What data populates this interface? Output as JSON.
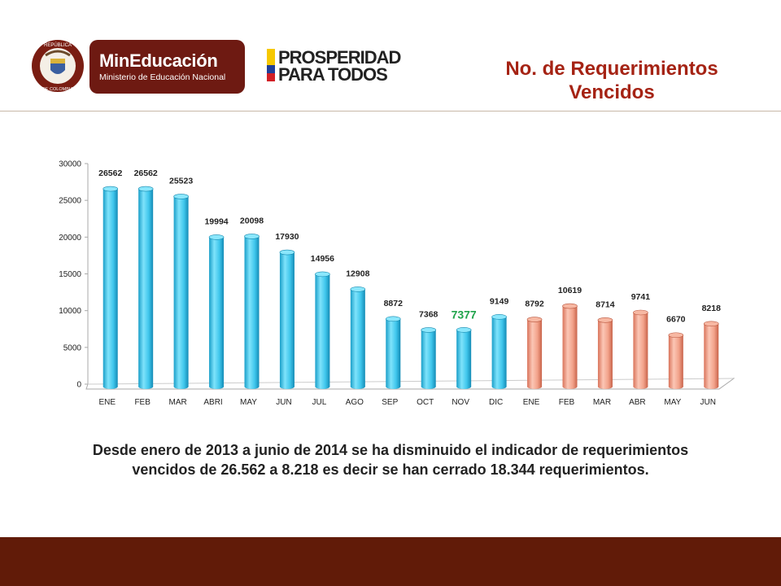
{
  "header": {
    "seal_top": "REPÚBLICA",
    "seal_bottom": "DE COLOMBIA",
    "ministry_name": "MinEducación",
    "ministry_sub": "Ministerio de Educación Nacional",
    "slogan_line1": "PROSPERIDAD",
    "slogan_line2": "PARA TODOS"
  },
  "title": "No. de Requerimientos Vencidos",
  "caption": "Desde enero de 2013 a junio de 2014 se ha disminuido el indicador de requerimientos vencidos de 26.562 a 8.218 es decir se han cerrado 18.344 requerimientos.",
  "colors": {
    "accent_title": "#a52314",
    "brand_dark": "#611b08",
    "series_2013": "#3fc6ec",
    "series_2014": "#f2a28a",
    "highlight_label": "#1fa34a"
  },
  "chart_data": {
    "type": "bar",
    "title": "",
    "xlabel": "",
    "ylabel": "",
    "ylim": [
      0,
      30000
    ],
    "yticks": [
      "0",
      "5000",
      "10000",
      "15000",
      "20000",
      "25000",
      "30000"
    ],
    "categories": [
      "ENE",
      "FEB",
      "MAR",
      "ABRI",
      "MAY",
      "JUN",
      "JUL",
      "AGO",
      "SEP",
      "OCT",
      "NOV",
      "DIC",
      "ENE",
      "FEB",
      "MAR",
      "ABR",
      "MAY",
      "JUN"
    ],
    "values": [
      26562,
      26562,
      25523,
      19994,
      20098,
      17930,
      14956,
      12908,
      8872,
      7368,
      7377,
      9149,
      8792,
      10619,
      8714,
      9741,
      6670,
      8218
    ],
    "data_labels": [
      "26562",
      "26562",
      "25523",
      "19994",
      "20098",
      "17930",
      "14956",
      "12908",
      "8872",
      "7368",
      "7377",
      "9149",
      "8792",
      "10619",
      "8714",
      "9741",
      "6670",
      "8218"
    ],
    "highlight_index": 10,
    "split_index": 12,
    "grid": false,
    "legend": "none"
  }
}
